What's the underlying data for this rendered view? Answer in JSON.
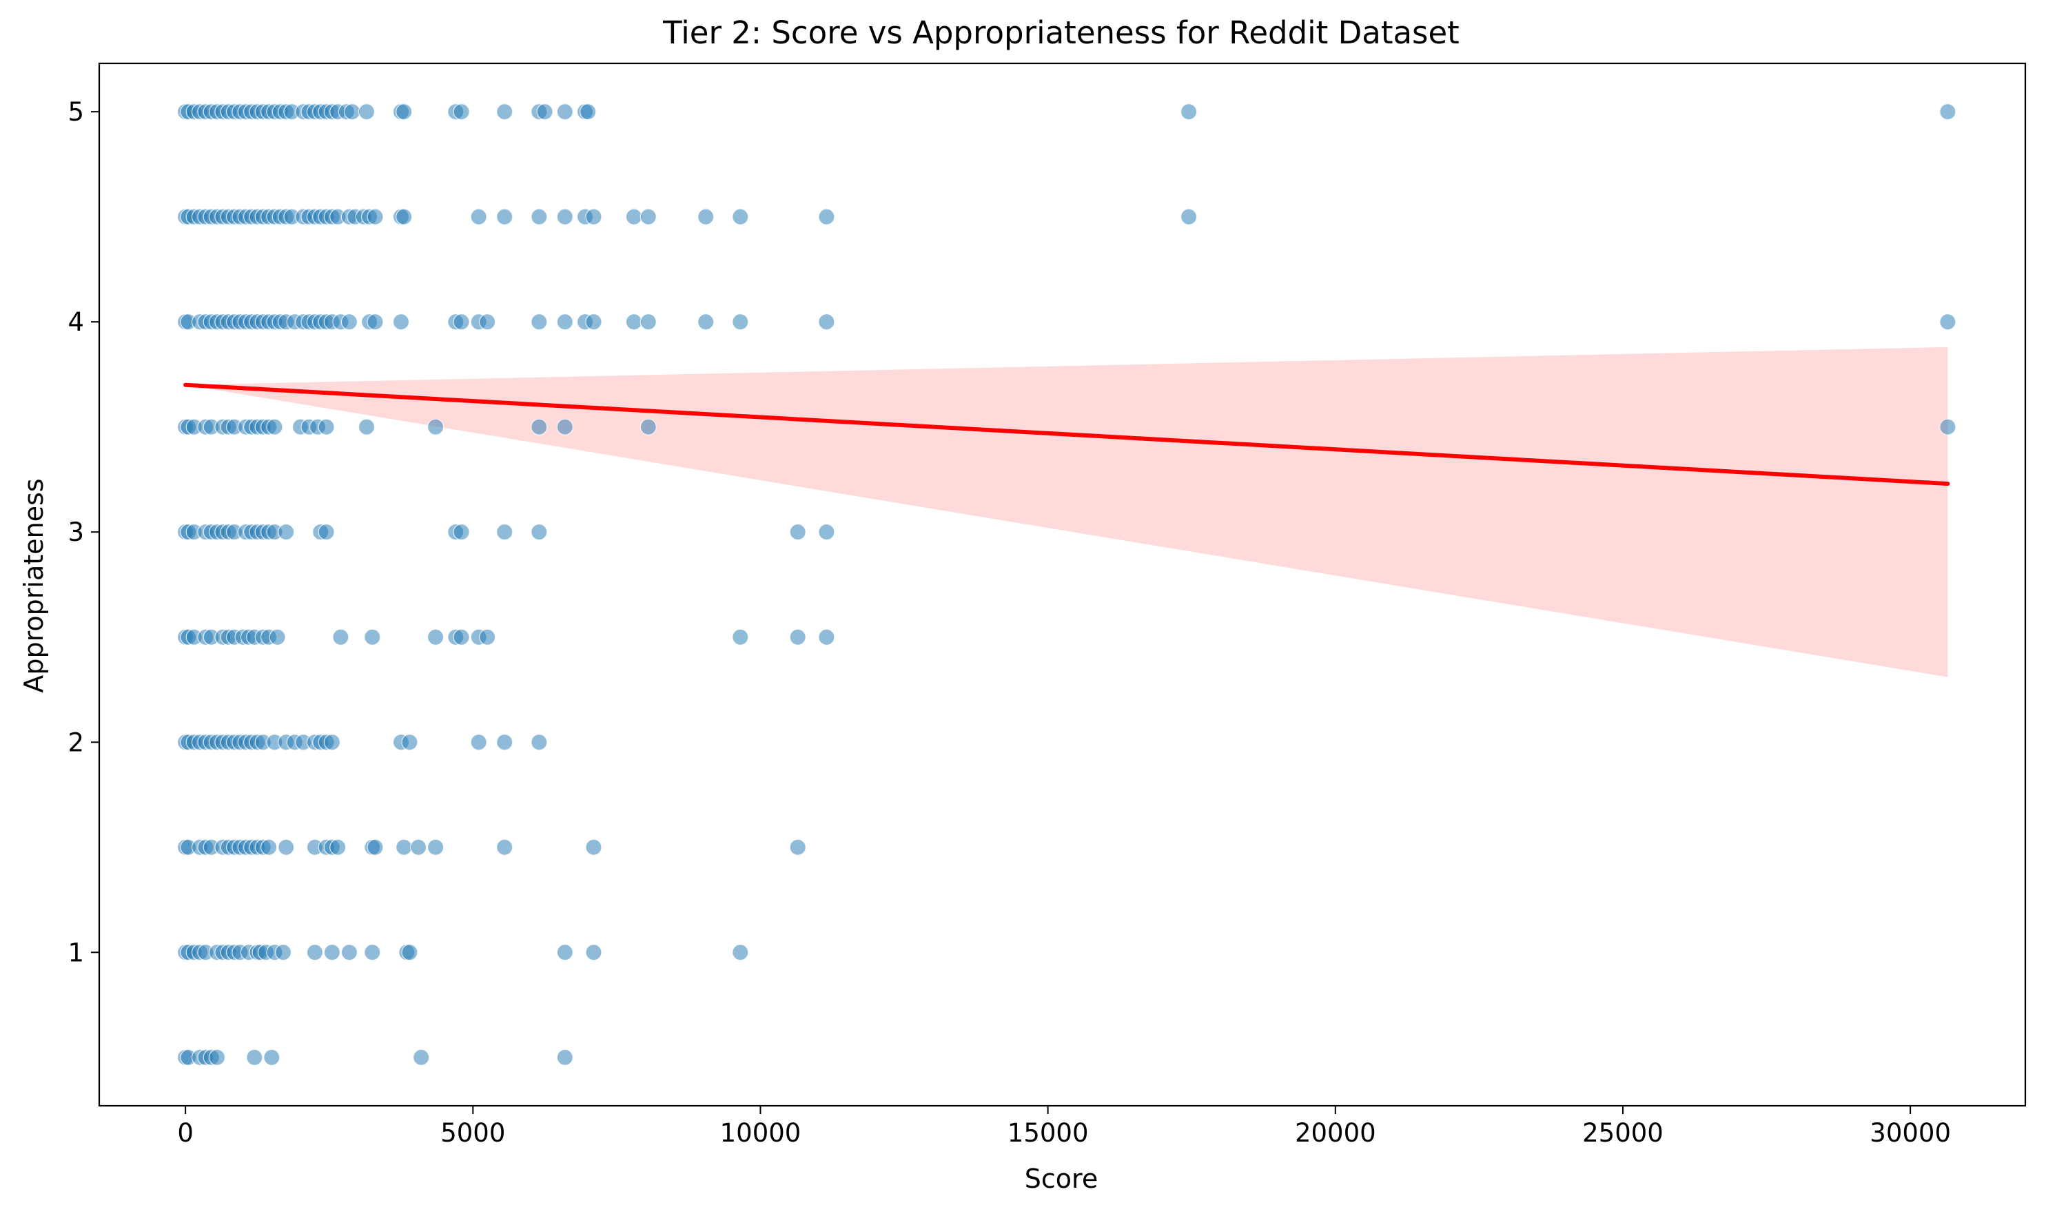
{
  "chart_data": {
    "type": "scatter",
    "title": "Tier 2: Score vs Appropriateness for Reddit Dataset",
    "xlabel": "Score",
    "ylabel": "Appropriateness",
    "xlim": [
      -1500,
      32000
    ],
    "ylim": [
      0.27,
      5.23
    ],
    "xticks": [
      0,
      5000,
      10000,
      15000,
      20000,
      25000,
      30000
    ],
    "yticks": [
      1,
      2,
      3,
      4,
      5
    ],
    "grid": false,
    "legend": "none",
    "colors": {
      "points": "#1f77b4",
      "regression_line": "#ff0000",
      "confidence_band": "#ffd8d8"
    },
    "regression": {
      "x": [
        0,
        30650
      ],
      "y": [
        3.7,
        3.23
      ],
      "ci_lower_at_max": 2.31,
      "ci_upper_at_max": 3.88
    },
    "series": [
      {
        "points": [
          [
            0,
            5
          ],
          [
            50,
            5
          ],
          [
            150,
            5
          ],
          [
            250,
            5
          ],
          [
            350,
            5
          ],
          [
            450,
            5
          ],
          [
            550,
            5
          ],
          [
            650,
            5
          ],
          [
            750,
            5
          ],
          [
            850,
            5
          ],
          [
            950,
            5
          ],
          [
            1050,
            5
          ],
          [
            1150,
            5
          ],
          [
            1250,
            5
          ],
          [
            1350,
            5
          ],
          [
            1450,
            5
          ],
          [
            1550,
            5
          ],
          [
            1650,
            5
          ],
          [
            1750,
            5
          ],
          [
            1850,
            5
          ],
          [
            2050,
            5
          ],
          [
            2150,
            5
          ],
          [
            2250,
            5
          ],
          [
            2350,
            5
          ],
          [
            2450,
            5
          ],
          [
            2550,
            5
          ],
          [
            2650,
            5
          ],
          [
            2800,
            5
          ],
          [
            2900,
            5
          ],
          [
            3150,
            5
          ],
          [
            3750,
            5
          ],
          [
            3800,
            5
          ],
          [
            4700,
            5
          ],
          [
            4800,
            5
          ],
          [
            5550,
            5
          ],
          [
            6150,
            5
          ],
          [
            6250,
            5
          ],
          [
            6600,
            5
          ],
          [
            6950,
            5
          ],
          [
            7000,
            5
          ],
          [
            17450,
            5
          ],
          [
            30650,
            5
          ],
          [
            0,
            4.5
          ],
          [
            50,
            4.5
          ],
          [
            150,
            4.5
          ],
          [
            250,
            4.5
          ],
          [
            350,
            4.5
          ],
          [
            450,
            4.5
          ],
          [
            550,
            4.5
          ],
          [
            650,
            4.5
          ],
          [
            750,
            4.5
          ],
          [
            850,
            4.5
          ],
          [
            950,
            4.5
          ],
          [
            1050,
            4.5
          ],
          [
            1150,
            4.5
          ],
          [
            1250,
            4.5
          ],
          [
            1350,
            4.5
          ],
          [
            1450,
            4.5
          ],
          [
            1550,
            4.5
          ],
          [
            1650,
            4.5
          ],
          [
            1750,
            4.5
          ],
          [
            1850,
            4.5
          ],
          [
            2050,
            4.5
          ],
          [
            2150,
            4.5
          ],
          [
            2250,
            4.5
          ],
          [
            2350,
            4.5
          ],
          [
            2450,
            4.5
          ],
          [
            2550,
            4.5
          ],
          [
            2650,
            4.5
          ],
          [
            2850,
            4.5
          ],
          [
            2950,
            4.5
          ],
          [
            3100,
            4.5
          ],
          [
            3200,
            4.5
          ],
          [
            3300,
            4.5
          ],
          [
            3750,
            4.5
          ],
          [
            3800,
            4.5
          ],
          [
            5100,
            4.5
          ],
          [
            5550,
            4.5
          ],
          [
            6150,
            4.5
          ],
          [
            6600,
            4.5
          ],
          [
            6950,
            4.5
          ],
          [
            7100,
            4.5
          ],
          [
            7800,
            4.5
          ],
          [
            8050,
            4.5
          ],
          [
            9050,
            4.5
          ],
          [
            9650,
            4.5
          ],
          [
            11150,
            4.5
          ],
          [
            17450,
            4.5
          ],
          [
            0,
            4
          ],
          [
            50,
            4
          ],
          [
            250,
            4
          ],
          [
            350,
            4
          ],
          [
            450,
            4
          ],
          [
            550,
            4
          ],
          [
            650,
            4
          ],
          [
            750,
            4
          ],
          [
            850,
            4
          ],
          [
            950,
            4
          ],
          [
            1050,
            4
          ],
          [
            1150,
            4
          ],
          [
            1250,
            4
          ],
          [
            1350,
            4
          ],
          [
            1450,
            4
          ],
          [
            1550,
            4
          ],
          [
            1650,
            4
          ],
          [
            1750,
            4
          ],
          [
            1900,
            4
          ],
          [
            2050,
            4
          ],
          [
            2150,
            4
          ],
          [
            2250,
            4
          ],
          [
            2350,
            4
          ],
          [
            2450,
            4
          ],
          [
            2550,
            4
          ],
          [
            2700,
            4
          ],
          [
            2850,
            4
          ],
          [
            3200,
            4
          ],
          [
            3300,
            4
          ],
          [
            3750,
            4
          ],
          [
            4700,
            4
          ],
          [
            4800,
            4
          ],
          [
            5100,
            4
          ],
          [
            5250,
            4
          ],
          [
            6150,
            4
          ],
          [
            6600,
            4
          ],
          [
            6950,
            4
          ],
          [
            7100,
            4
          ],
          [
            7800,
            4
          ],
          [
            8050,
            4
          ],
          [
            9050,
            4
          ],
          [
            9650,
            4
          ],
          [
            11150,
            4
          ],
          [
            30650,
            4
          ],
          [
            0,
            3.5
          ],
          [
            50,
            3.5
          ],
          [
            150,
            3.5
          ],
          [
            350,
            3.5
          ],
          [
            450,
            3.5
          ],
          [
            650,
            3.5
          ],
          [
            750,
            3.5
          ],
          [
            850,
            3.5
          ],
          [
            1050,
            3.5
          ],
          [
            1150,
            3.5
          ],
          [
            1250,
            3.5
          ],
          [
            1350,
            3.5
          ],
          [
            1450,
            3.5
          ],
          [
            1550,
            3.5
          ],
          [
            2000,
            3.5
          ],
          [
            2150,
            3.5
          ],
          [
            2300,
            3.5
          ],
          [
            2450,
            3.5
          ],
          [
            3150,
            3.5
          ],
          [
            4350,
            3.5
          ],
          [
            6150,
            3.5
          ],
          [
            6600,
            3.5
          ],
          [
            8050,
            3.5
          ],
          [
            30650,
            3.5
          ],
          [
            0,
            3
          ],
          [
            50,
            3
          ],
          [
            150,
            3
          ],
          [
            350,
            3
          ],
          [
            450,
            3
          ],
          [
            550,
            3
          ],
          [
            650,
            3
          ],
          [
            750,
            3
          ],
          [
            850,
            3
          ],
          [
            1050,
            3
          ],
          [
            1150,
            3
          ],
          [
            1250,
            3
          ],
          [
            1350,
            3
          ],
          [
            1450,
            3
          ],
          [
            1550,
            3
          ],
          [
            1750,
            3
          ],
          [
            2350,
            3
          ],
          [
            2450,
            3
          ],
          [
            4700,
            3
          ],
          [
            4800,
            3
          ],
          [
            5550,
            3
          ],
          [
            6150,
            3
          ],
          [
            10650,
            3
          ],
          [
            11150,
            3
          ],
          [
            0,
            2.5
          ],
          [
            50,
            2.5
          ],
          [
            150,
            2.5
          ],
          [
            350,
            2.5
          ],
          [
            450,
            2.5
          ],
          [
            650,
            2.5
          ],
          [
            750,
            2.5
          ],
          [
            850,
            2.5
          ],
          [
            1000,
            2.5
          ],
          [
            1100,
            2.5
          ],
          [
            1200,
            2.5
          ],
          [
            1350,
            2.5
          ],
          [
            1450,
            2.5
          ],
          [
            1600,
            2.5
          ],
          [
            2700,
            2.5
          ],
          [
            3250,
            2.5
          ],
          [
            4350,
            2.5
          ],
          [
            4700,
            2.5
          ],
          [
            4800,
            2.5
          ],
          [
            5100,
            2.5
          ],
          [
            5250,
            2.5
          ],
          [
            9650,
            2.5
          ],
          [
            10650,
            2.5
          ],
          [
            11150,
            2.5
          ],
          [
            0,
            2
          ],
          [
            50,
            2
          ],
          [
            150,
            2
          ],
          [
            250,
            2
          ],
          [
            350,
            2
          ],
          [
            450,
            2
          ],
          [
            550,
            2
          ],
          [
            650,
            2
          ],
          [
            750,
            2
          ],
          [
            850,
            2
          ],
          [
            950,
            2
          ],
          [
            1050,
            2
          ],
          [
            1150,
            2
          ],
          [
            1250,
            2
          ],
          [
            1350,
            2
          ],
          [
            1550,
            2
          ],
          [
            1750,
            2
          ],
          [
            1900,
            2
          ],
          [
            2050,
            2
          ],
          [
            2250,
            2
          ],
          [
            2350,
            2
          ],
          [
            2450,
            2
          ],
          [
            2550,
            2
          ],
          [
            3750,
            2
          ],
          [
            3900,
            2
          ],
          [
            5100,
            2
          ],
          [
            5550,
            2
          ],
          [
            6150,
            2
          ],
          [
            0,
            1.5
          ],
          [
            50,
            1.5
          ],
          [
            250,
            1.5
          ],
          [
            350,
            1.5
          ],
          [
            450,
            1.5
          ],
          [
            650,
            1.5
          ],
          [
            750,
            1.5
          ],
          [
            850,
            1.5
          ],
          [
            950,
            1.5
          ],
          [
            1050,
            1.5
          ],
          [
            1150,
            1.5
          ],
          [
            1250,
            1.5
          ],
          [
            1350,
            1.5
          ],
          [
            1450,
            1.5
          ],
          [
            1750,
            1.5
          ],
          [
            2250,
            1.5
          ],
          [
            2450,
            1.5
          ],
          [
            2550,
            1.5
          ],
          [
            2650,
            1.5
          ],
          [
            3250,
            1.5
          ],
          [
            3300,
            1.5
          ],
          [
            3800,
            1.5
          ],
          [
            4050,
            1.5
          ],
          [
            4350,
            1.5
          ],
          [
            5550,
            1.5
          ],
          [
            7100,
            1.5
          ],
          [
            10650,
            1.5
          ],
          [
            0,
            1
          ],
          [
            50,
            1
          ],
          [
            150,
            1
          ],
          [
            250,
            1
          ],
          [
            350,
            1
          ],
          [
            550,
            1
          ],
          [
            650,
            1
          ],
          [
            750,
            1
          ],
          [
            850,
            1
          ],
          [
            950,
            1
          ],
          [
            1100,
            1
          ],
          [
            1250,
            1
          ],
          [
            1300,
            1
          ],
          [
            1400,
            1
          ],
          [
            1550,
            1
          ],
          [
            1700,
            1
          ],
          [
            2250,
            1
          ],
          [
            2550,
            1
          ],
          [
            2850,
            1
          ],
          [
            3250,
            1
          ],
          [
            3850,
            1
          ],
          [
            3900,
            1
          ],
          [
            6600,
            1
          ],
          [
            7100,
            1
          ],
          [
            9650,
            1
          ],
          [
            0,
            0.5
          ],
          [
            50,
            0.5
          ],
          [
            250,
            0.5
          ],
          [
            350,
            0.5
          ],
          [
            450,
            0.5
          ],
          [
            550,
            0.5
          ],
          [
            1200,
            0.5
          ],
          [
            1500,
            0.5
          ],
          [
            4100,
            0.5
          ],
          [
            6600,
            0.5
          ]
        ]
      }
    ]
  }
}
